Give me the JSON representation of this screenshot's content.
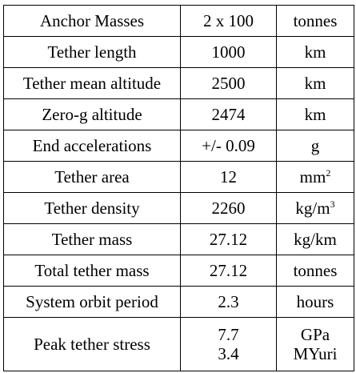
{
  "table": {
    "rows": [
      [
        "Anchor Masses",
        "2 x 100",
        "tonnes"
      ],
      [
        "Tether length",
        "1000",
        "km"
      ],
      [
        "Tether mean altitude",
        "2500",
        "km"
      ],
      [
        "Zero-g altitude",
        "2474",
        "km"
      ],
      [
        "End accelerations",
        "+/- 0.09",
        "g"
      ],
      [
        "Tether area",
        "12",
        {
          "base": "mm",
          "sup": "2"
        }
      ],
      [
        "Tether density",
        "2260",
        {
          "base": "kg/m",
          "sup": "3"
        }
      ],
      [
        "Tether mass",
        "27.12",
        "kg/km"
      ],
      [
        "Total tether mass",
        "27.12",
        "tonnes"
      ],
      [
        "System orbit period",
        "2.3",
        "hours"
      ],
      [
        "Peak tether stress",
        [
          "7.7",
          "3.4"
        ],
        [
          "GPa",
          "MYuri"
        ]
      ]
    ]
  }
}
